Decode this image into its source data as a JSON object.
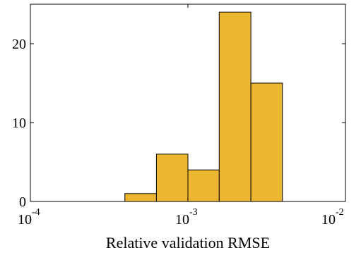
{
  "chart_data": {
    "type": "bar",
    "xlabel": "Relative validation RMSE",
    "ylabel": "",
    "title": "",
    "x_scale": "log",
    "xlim": [
      0.0001,
      0.01
    ],
    "ylim": [
      0,
      25
    ],
    "x_ticks": [
      {
        "base": "10",
        "exp": "-4",
        "value": 0.0001
      },
      {
        "base": "10",
        "exp": "-3",
        "value": 0.001
      },
      {
        "base": "10",
        "exp": "-2",
        "value": 0.01
      }
    ],
    "y_ticks": [
      {
        "label": "0",
        "value": 0
      },
      {
        "label": "10",
        "value": 10
      },
      {
        "label": "20",
        "value": 20
      }
    ],
    "bins": [
      {
        "x0": 0.000398,
        "x1": 0.000631,
        "count": 1
      },
      {
        "x0": 0.000631,
        "x1": 0.001,
        "count": 6
      },
      {
        "x0": 0.001,
        "x1": 0.00158,
        "count": 4
      },
      {
        "x0": 0.00158,
        "x1": 0.00251,
        "count": 24
      },
      {
        "x0": 0.00251,
        "x1": 0.00398,
        "count": 15
      }
    ],
    "bar_color": "#EDB732",
    "edge_color": "#000000",
    "grid": false
  }
}
